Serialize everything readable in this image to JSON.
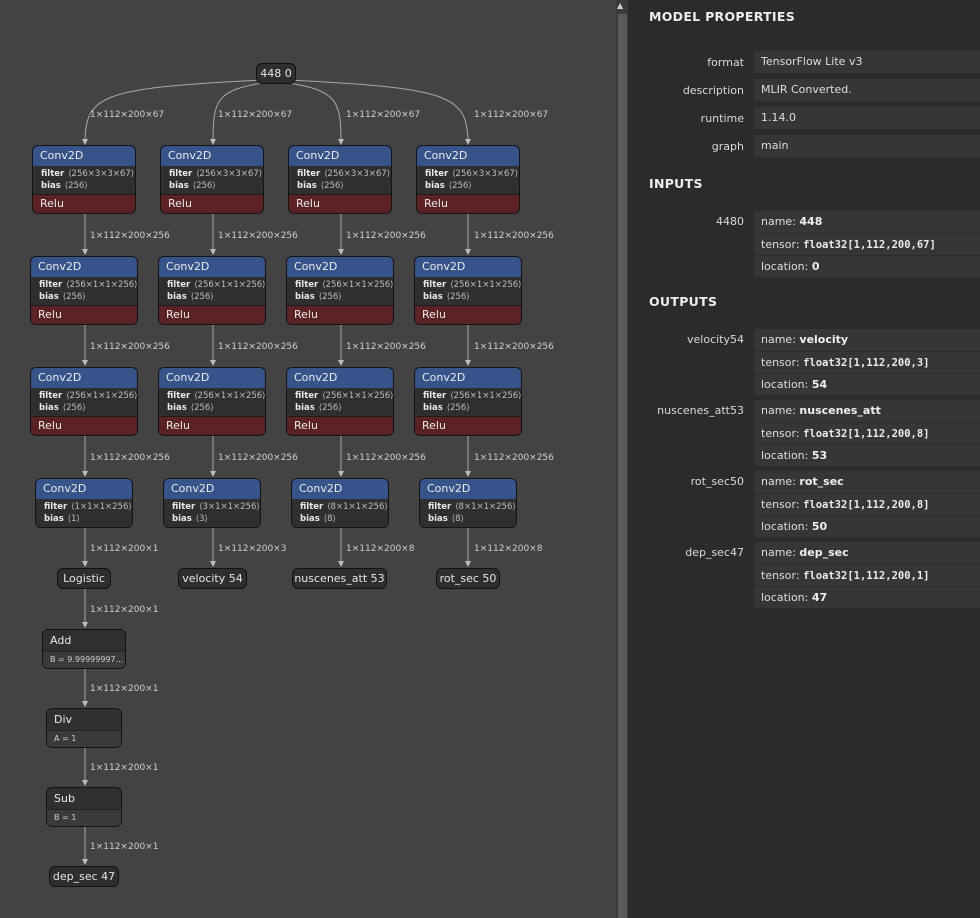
{
  "graph": {
    "input_node": "448 0",
    "edges": {
      "input_edge": "1×112×200×67",
      "row_edge": "1×112×200×256",
      "out_edges": [
        "1×112×200×1",
        "1×112×200×3",
        "1×112×200×8",
        "1×112×200×8"
      ],
      "chain_edge": "1×112×200×1"
    },
    "conv_label": "Conv2D",
    "relu_label": "Relu",
    "filter_key": "filter",
    "bias_key": "bias",
    "row1": {
      "filter": "⟨256×3×3×67⟩",
      "bias": "⟨256⟩"
    },
    "row2": {
      "filter": "⟨256×1×1×256⟩",
      "bias": "⟨256⟩"
    },
    "row3": {
      "filter": "⟨256×1×1×256⟩",
      "bias": "⟨256⟩"
    },
    "row4": [
      {
        "filter": "⟨1×1×1×256⟩",
        "bias": "⟨1⟩"
      },
      {
        "filter": "⟨3×1×1×256⟩",
        "bias": "⟨3⟩"
      },
      {
        "filter": "⟨8×1×1×256⟩",
        "bias": "⟨8⟩"
      },
      {
        "filter": "⟨8×1×1×256⟩",
        "bias": "⟨8⟩"
      }
    ],
    "logistic": "Logistic",
    "outputs": [
      "velocity 54",
      "nuscenes_att 53",
      "rot_sec 50"
    ],
    "add": {
      "title": "Add",
      "attr": "B = 9.99999997..."
    },
    "div": {
      "title": "Div",
      "attr": "A = 1"
    },
    "sub": {
      "title": "Sub",
      "attr": "B = 1"
    },
    "final_output": "dep_sec 47"
  },
  "panel": {
    "title": "MODEL PROPERTIES",
    "properties": [
      {
        "label": "format",
        "value": "TensorFlow Lite v3"
      },
      {
        "label": "description",
        "value": "MLIR Converted."
      },
      {
        "label": "runtime",
        "value": "1.14.0"
      },
      {
        "label": "graph",
        "value": "main"
      }
    ],
    "inputs_title": "INPUTS",
    "outputs_title": "OUTPUTS",
    "name_key": "name:",
    "tensor_key": "tensor:",
    "location_key": "location:",
    "inputs": [
      {
        "label": "4480",
        "name": "448",
        "tensor": "float32[1,112,200,67]",
        "location": "0"
      }
    ],
    "outputs": [
      {
        "label": "velocity54",
        "name": "velocity",
        "tensor": "float32[1,112,200,3]",
        "location": "54"
      },
      {
        "label": "nuscenes_att53",
        "name": "nuscenes_att",
        "tensor": "float32[1,112,200,8]",
        "location": "53"
      },
      {
        "label": "rot_sec50",
        "name": "rot_sec",
        "tensor": "float32[1,112,200,8]",
        "location": "50"
      },
      {
        "label": "dep_sec47",
        "name": "dep_sec",
        "tensor": "float32[1,112,200,1]",
        "location": "47"
      }
    ]
  }
}
